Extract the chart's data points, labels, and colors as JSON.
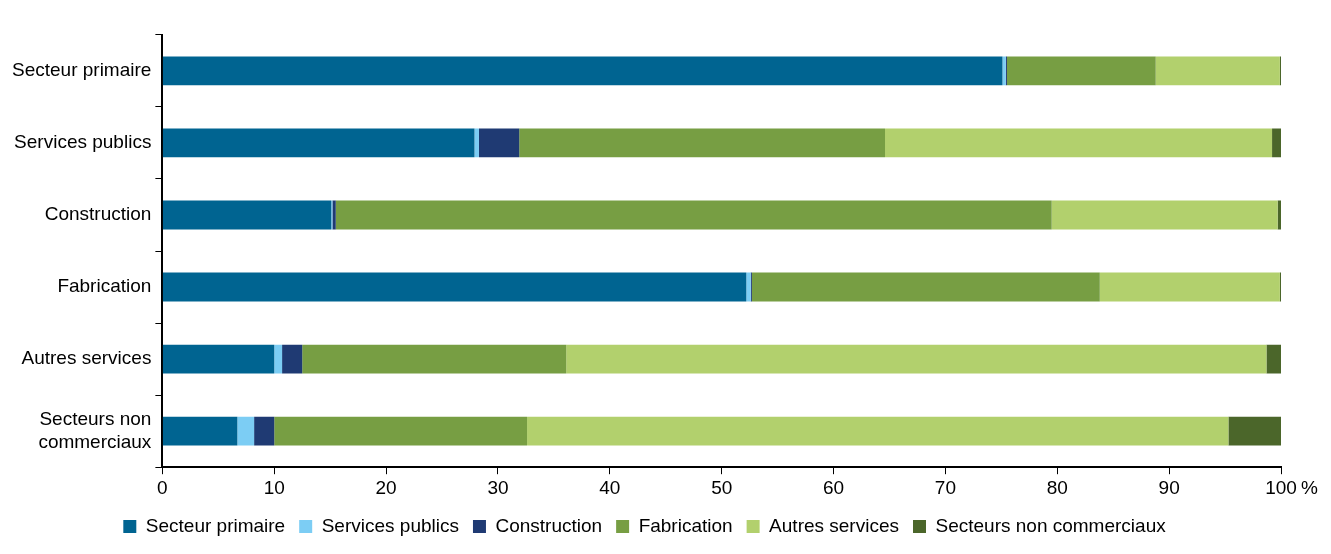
{
  "chart_data": {
    "type": "bar",
    "orientation": "horizontal",
    "stacked": true,
    "xlabel": "%",
    "categories": [
      "Secteur primaire",
      "Services publics",
      "Construction",
      "Fabrication",
      "Autres services",
      "Secteurs non commerciaux"
    ],
    "series": [
      {
        "name": "Secteur primaire",
        "color": "#006491",
        "values": [
          75.1,
          27.9,
          15.1,
          52.2,
          10.0,
          6.7
        ]
      },
      {
        "name": "Services publics",
        "color": "#7ccdf4",
        "values": [
          0.3,
          0.4,
          0.1,
          0.4,
          0.7,
          1.5
        ]
      },
      {
        "name": "Construction",
        "color": "#1f3a73",
        "values": [
          0.1,
          3.6,
          0.3,
          0.1,
          1.8,
          1.8
        ]
      },
      {
        "name": "Fabrication",
        "color": "#779e43",
        "values": [
          13.3,
          32.7,
          64.0,
          31.1,
          23.6,
          22.6
        ]
      },
      {
        "name": "Autres services",
        "color": "#b2d06d",
        "values": [
          11.1,
          34.6,
          20.2,
          16.1,
          62.6,
          62.7
        ]
      },
      {
        "name": "Secteurs non commerciaux",
        "color": "#4b662a",
        "values": [
          0.1,
          0.8,
          0.3,
          0.1,
          1.3,
          4.7
        ]
      }
    ],
    "xlim": [
      0,
      100
    ],
    "xticks": [
      0,
      10,
      20,
      30,
      40,
      50,
      60,
      70,
      80,
      90,
      100
    ],
    "grid": false,
    "legend": "bottom"
  }
}
